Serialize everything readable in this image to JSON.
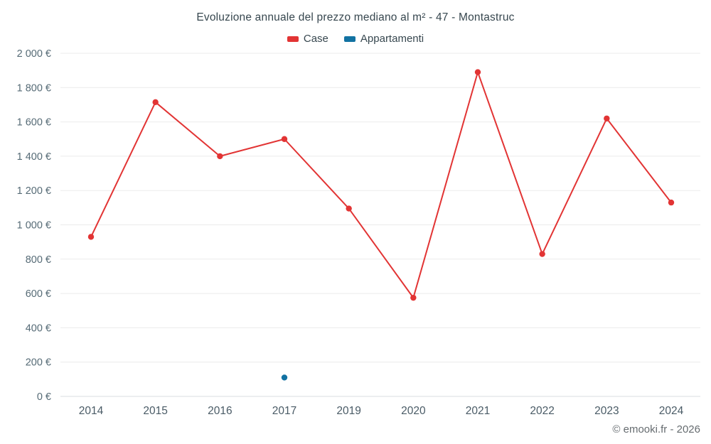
{
  "title": "Evoluzione annuale del prezzo mediano al m² - 47 - Montastruc",
  "legend": {
    "items": [
      {
        "label": "Case",
        "color": "#e23434"
      },
      {
        "label": "Appartamenti",
        "color": "#1272a2"
      }
    ]
  },
  "footer": {
    "credit": "© emooki.fr - 2026"
  },
  "chart_data": {
    "type": "line",
    "title": "Evoluzione annuale del prezzo mediano al m² - 47 - Montastruc",
    "categories": [
      "2014",
      "2015",
      "2016",
      "2017",
      "2019",
      "2020",
      "2021",
      "2022",
      "2023",
      "2024"
    ],
    "series": [
      {
        "name": "Case",
        "color": "#e23434",
        "values": [
          930,
          1715,
          1400,
          1500,
          1095,
          575,
          1890,
          830,
          1620,
          1130
        ]
      },
      {
        "name": "Appartamenti",
        "color": "#1272a2",
        "values": [
          null,
          null,
          null,
          110,
          null,
          null,
          null,
          null,
          null,
          null
        ]
      }
    ],
    "ylim": [
      0,
      2000
    ],
    "ytick_step": 200,
    "y_suffix": " €",
    "xlabel": "",
    "ylabel": "",
    "grid": "horizontal",
    "legend_position": "top"
  }
}
